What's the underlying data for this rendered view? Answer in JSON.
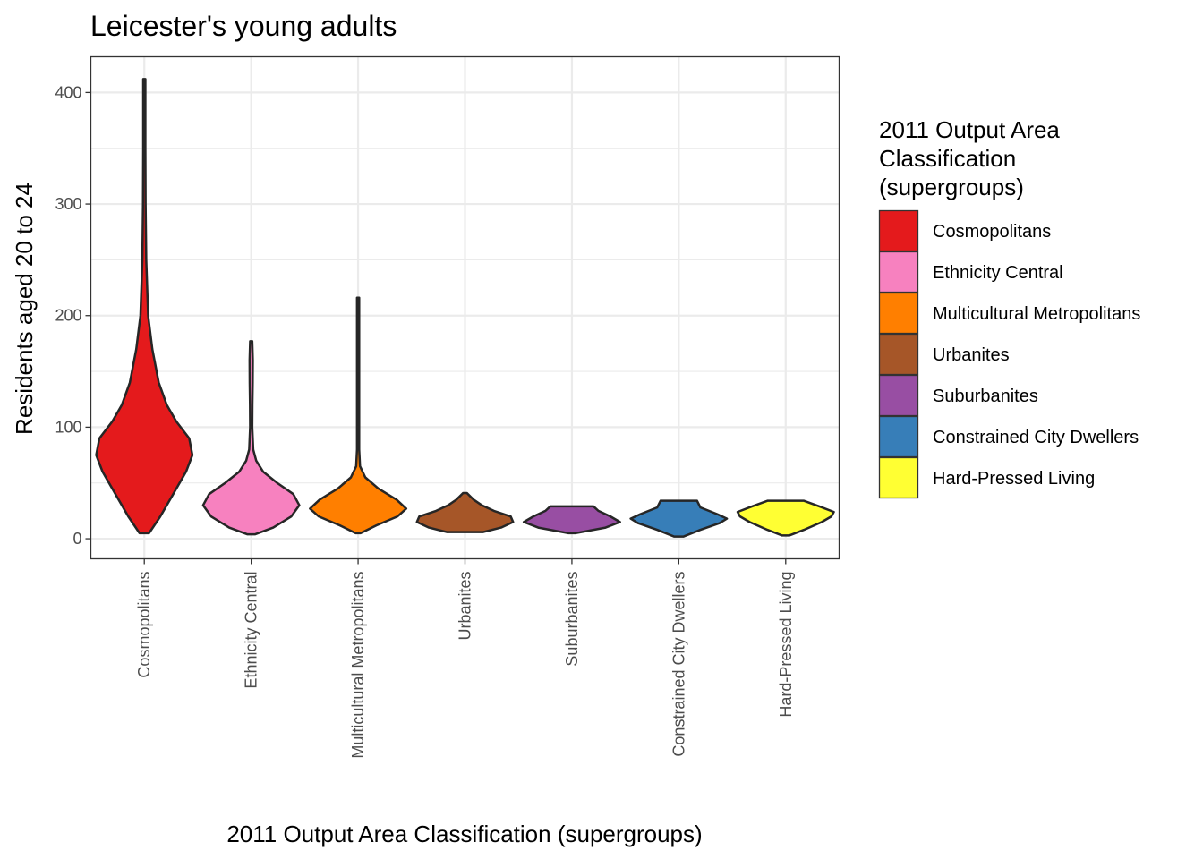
{
  "chart_data": {
    "type": "violin",
    "title": "Leicester's young adults",
    "xlabel": "2011 Output Area Classification (supergroups)",
    "ylabel": "Residents aged 20 to 24",
    "ylim": [
      -18,
      432
    ],
    "yticks": [
      0,
      100,
      200,
      300,
      400
    ],
    "grid": true,
    "legend": {
      "title": [
        "2011 Output Area",
        "Classification",
        "(supergroups)"
      ],
      "placement": "right"
    },
    "categories": [
      "Cosmopolitans",
      "Ethnicity Central",
      "Multicultural Metropolitans",
      "Urbanites",
      "Suburbanites",
      "Constrained City Dwellers",
      "Hard-Pressed Living"
    ],
    "colors": [
      "#e41a1c",
      "#f781bf",
      "#ff7f00",
      "#a65628",
      "#984ea3",
      "#377eb8",
      "#ffff33"
    ],
    "series": [
      {
        "name": "Cosmopolitans",
        "min": 5,
        "max": 412,
        "density": [
          [
            5,
            0.015
          ],
          [
            20,
            0.05
          ],
          [
            40,
            0.09
          ],
          [
            60,
            0.13
          ],
          [
            75,
            0.15
          ],
          [
            90,
            0.14
          ],
          [
            105,
            0.1
          ],
          [
            120,
            0.07
          ],
          [
            140,
            0.045
          ],
          [
            170,
            0.025
          ],
          [
            200,
            0.012
          ],
          [
            250,
            0.006
          ],
          [
            300,
            0.004
          ],
          [
            350,
            0.003
          ],
          [
            412,
            0.002
          ]
        ]
      },
      {
        "name": "Ethnicity Central",
        "min": 4,
        "max": 177,
        "density": [
          [
            4,
            0.04
          ],
          [
            10,
            0.22
          ],
          [
            20,
            0.4
          ],
          [
            30,
            0.48
          ],
          [
            40,
            0.42
          ],
          [
            50,
            0.26
          ],
          [
            60,
            0.12
          ],
          [
            70,
            0.05
          ],
          [
            80,
            0.02
          ],
          [
            100,
            0.01
          ],
          [
            120,
            0.012
          ],
          [
            140,
            0.015
          ],
          [
            160,
            0.016
          ],
          [
            170,
            0.013
          ],
          [
            177,
            0.008
          ]
        ]
      },
      {
        "name": "Multicultural Metropolitans",
        "min": 5,
        "max": 216,
        "density": [
          [
            5,
            0.05
          ],
          [
            12,
            0.38
          ],
          [
            20,
            0.82
          ],
          [
            27,
            1
          ],
          [
            35,
            0.8
          ],
          [
            45,
            0.42
          ],
          [
            55,
            0.15
          ],
          [
            65,
            0.04
          ],
          [
            80,
            0.015
          ],
          [
            100,
            0.008
          ],
          [
            110,
            0.01
          ],
          [
            130,
            0.005
          ],
          [
            145,
            0.009
          ],
          [
            170,
            0.003
          ],
          [
            216,
            0.001
          ]
        ]
      },
      {
        "name": "Urbanites",
        "min": 6,
        "max": 41,
        "density": [
          [
            6,
            0.38
          ],
          [
            10,
            0.75
          ],
          [
            15,
            1
          ],
          [
            20,
            0.95
          ],
          [
            25,
            0.6
          ],
          [
            30,
            0.35
          ],
          [
            35,
            0.18
          ],
          [
            41,
            0.04
          ]
        ]
      },
      {
        "name": "Suburbanites",
        "min": 5,
        "max": 29,
        "density": [
          [
            5,
            0.08
          ],
          [
            10,
            0.7
          ],
          [
            15,
            1
          ],
          [
            20,
            0.8
          ],
          [
            25,
            0.55
          ],
          [
            29,
            0.45
          ]
        ]
      },
      {
        "name": "Constrained City Dwellers",
        "min": 2,
        "max": 34,
        "density": [
          [
            2,
            0.1
          ],
          [
            8,
            0.45
          ],
          [
            14,
            0.85
          ],
          [
            18,
            1
          ],
          [
            22,
            0.8
          ],
          [
            28,
            0.45
          ],
          [
            34,
            0.38
          ]
        ]
      },
      {
        "name": "Hard-Pressed Living",
        "min": 3,
        "max": 34,
        "density": [
          [
            3,
            0.08
          ],
          [
            8,
            0.38
          ],
          [
            15,
            0.75
          ],
          [
            20,
            0.95
          ],
          [
            24,
            1
          ],
          [
            29,
            0.7
          ],
          [
            34,
            0.38
          ]
        ]
      }
    ]
  }
}
